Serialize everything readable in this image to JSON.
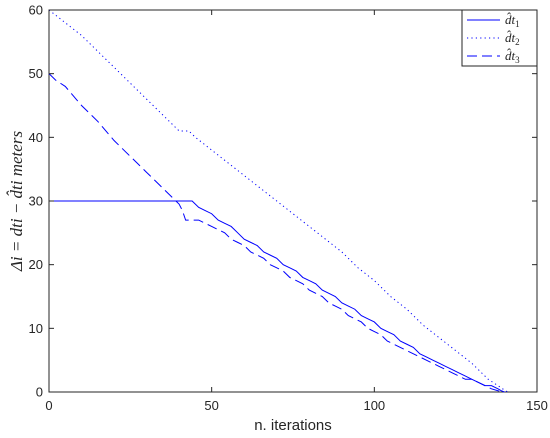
{
  "chart_data": {
    "type": "line",
    "title": "",
    "xlabel": "n. iterations",
    "ylabel": "Δi = dti − d̂ti meters",
    "xlim": [
      0,
      150
    ],
    "ylim": [
      0,
      60
    ],
    "xticks": [
      0,
      50,
      100,
      150
    ],
    "yticks": [
      0,
      10,
      20,
      30,
      40,
      50,
      60
    ],
    "grid": false,
    "legend_position": "top-right",
    "line_color": "#0000ff",
    "series": [
      {
        "name": "d̂t1",
        "style": "solid",
        "x": [
          0,
          44,
          46,
          48,
          50,
          52,
          54,
          56,
          58,
          60,
          62,
          64,
          66,
          68,
          70,
          72,
          74,
          76,
          78,
          80,
          82,
          84,
          86,
          88,
          90,
          92,
          94,
          96,
          98,
          100,
          102,
          104,
          106,
          108,
          110,
          112,
          114,
          116,
          118,
          120,
          122,
          124,
          126,
          128,
          130,
          132,
          134,
          136,
          138,
          139,
          140
        ],
        "y": [
          30,
          30,
          29,
          28.5,
          28,
          27,
          26.5,
          26,
          25,
          24,
          23.5,
          23,
          22,
          21.5,
          21,
          20,
          19.5,
          19,
          18,
          17.5,
          17,
          16,
          15.5,
          15,
          14,
          13.5,
          13,
          12,
          11.5,
          11,
          10,
          9.5,
          9,
          8,
          7.5,
          7,
          6,
          5.5,
          5,
          4.5,
          4,
          3.5,
          3,
          2.5,
          2,
          1.5,
          1,
          1,
          0.5,
          0.2,
          0
        ]
      },
      {
        "name": "d̂t2",
        "style": "dotted",
        "x": [
          0,
          5,
          10,
          15,
          20,
          25,
          30,
          35,
          40,
          43,
          45,
          50,
          55,
          60,
          65,
          70,
          75,
          80,
          85,
          90,
          95,
          100,
          105,
          110,
          115,
          120,
          125,
          130,
          135,
          138,
          140,
          141
        ],
        "y": [
          60,
          58,
          56,
          53.5,
          51,
          48.5,
          46,
          43.5,
          41,
          41,
          40,
          38,
          36,
          34,
          32,
          30,
          28,
          26,
          24,
          22,
          19.5,
          17.5,
          15,
          13,
          10.5,
          8.5,
          6.5,
          4.5,
          2,
          1,
          0.3,
          0
        ]
      },
      {
        "name": "d̂t3",
        "style": "dashed",
        "x": [
          0,
          2,
          5,
          10,
          15,
          20,
          25,
          30,
          35,
          40,
          41,
          42,
          44,
          46,
          48,
          50,
          52,
          54,
          56,
          58,
          60,
          62,
          64,
          66,
          68,
          70,
          72,
          74,
          76,
          78,
          80,
          82,
          84,
          86,
          88,
          90,
          92,
          94,
          96,
          98,
          100,
          102,
          104,
          106,
          108,
          110,
          112,
          114,
          116,
          118,
          120,
          122,
          124,
          126,
          128,
          130,
          132,
          134,
          136,
          138,
          140
        ],
        "y": [
          50,
          49,
          48,
          45,
          42.5,
          39.5,
          37,
          34.5,
          32,
          29.5,
          28.5,
          27,
          27,
          27,
          26.5,
          26,
          25.5,
          25,
          24,
          23.5,
          23,
          22,
          21.5,
          21,
          20,
          19.5,
          19,
          18,
          17.5,
          17,
          16,
          15.5,
          15,
          14,
          13.5,
          13,
          12,
          11.5,
          11,
          10,
          9.5,
          9,
          8,
          7.5,
          7,
          6.5,
          6,
          5.5,
          5,
          4.5,
          4,
          3.5,
          3,
          2.5,
          2,
          2,
          1.5,
          1,
          0.5,
          0.2,
          0
        ]
      }
    ]
  }
}
